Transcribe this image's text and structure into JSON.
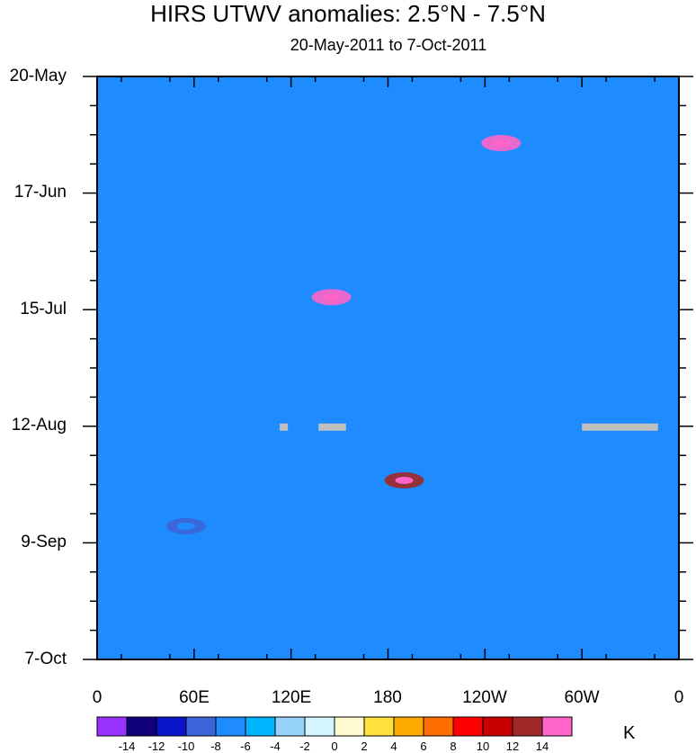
{
  "chart_data": {
    "type": "heatmap",
    "title": "HIRS UTWV anomalies: 2.5°N - 7.5°N",
    "subtitle": "20-May-2011 to 7-Oct-2011",
    "x_ticks": [
      "0",
      "60E",
      "120E",
      "180",
      "120W",
      "60W",
      "0"
    ],
    "y_ticks": [
      "20-May",
      "17-Jun",
      "15-Jul",
      "12-Aug",
      "9-Sep",
      "7-Oct"
    ],
    "x_range_deg_east": [
      0,
      360
    ],
    "y_range_days": [
      0,
      140
    ],
    "units": "K",
    "colorbar_levels": [
      "-14",
      "-12",
      "-10",
      "-8",
      "-6",
      "-4",
      "-2",
      "0",
      "2",
      "4",
      "6",
      "8",
      "10",
      "12",
      "14"
    ],
    "colorbar_colors": [
      "#9a33ff",
      "#10007a",
      "#0a14c8",
      "#3c64d8",
      "#1e8cff",
      "#00b4ff",
      "#96d2fa",
      "#d2f5ff",
      "#fffad2",
      "#ffe03c",
      "#ffaa00",
      "#ff6e00",
      "#ff0000",
      "#c80000",
      "#a02828",
      "#ff64c8"
    ],
    "missing_data_color": "#c0c0c0",
    "missing_data": [
      {
        "lon_start": 113,
        "lon_end": 118,
        "date": "12-Aug"
      },
      {
        "lon_start": 137,
        "lon_end": 154,
        "date": "12-Aug"
      },
      {
        "lon_start": 300,
        "lon_end": 347,
        "date": "12-Aug"
      }
    ],
    "features": [
      {
        "label": "strong positive anomaly",
        "lon": 190,
        "date": "25-Aug",
        "value": 12
      },
      {
        "label": "strong positive anomaly",
        "lon": 250,
        "date": "5-Jun",
        "value": 14
      },
      {
        "label": "strong positive anomaly",
        "lon": 145,
        "date": "12-Jul",
        "value": 14
      },
      {
        "label": "strong negative anomaly",
        "lon": 55,
        "date": "5-Sep",
        "value": -10
      }
    ]
  }
}
